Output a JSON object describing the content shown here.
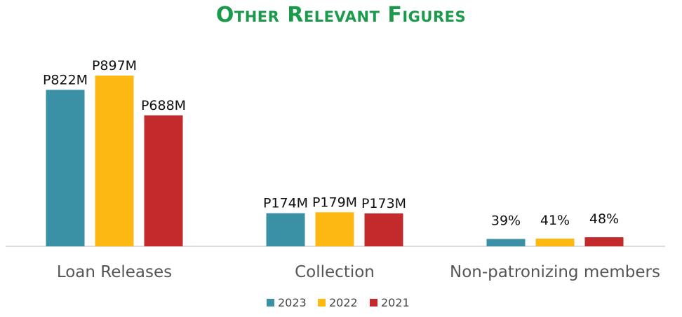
{
  "title": "Other Relevant Figures",
  "colors": {
    "title": "#1a9a4a",
    "2023": "#3a91a6",
    "2022": "#fdb813",
    "2021": "#c22a2c",
    "axis": "#d0d0d0"
  },
  "chart_data": {
    "type": "bar",
    "title": "Other Relevant Figures",
    "categories": [
      "Loan Releases",
      "Collection",
      "Non-patronizing members"
    ],
    "series": [
      {
        "name": "2023",
        "values": [
          822,
          174,
          39
        ],
        "labels": [
          "P822M",
          "P174M",
          "39%"
        ]
      },
      {
        "name": "2022",
        "values": [
          897,
          179,
          41
        ],
        "labels": [
          "P897M",
          "P179M",
          "41%"
        ]
      },
      {
        "name": "2021",
        "values": [
          688,
          173,
          48
        ],
        "labels": [
          "P688M",
          "P173M",
          "48%"
        ]
      }
    ],
    "ylim": [
      0,
      1000
    ],
    "legend": "bottom-center",
    "grid": false
  }
}
